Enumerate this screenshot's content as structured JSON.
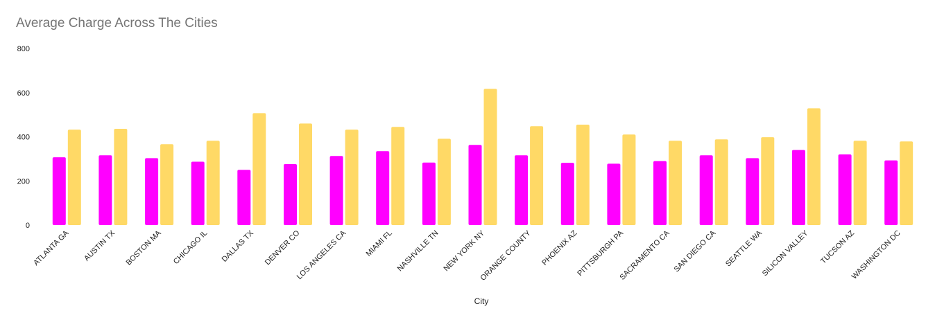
{
  "chart_data": {
    "type": "bar",
    "title": "Average Charge Across The Cities",
    "xlabel": "City",
    "ylabel": "",
    "ylim": [
      0,
      800
    ],
    "yticks": [
      0,
      200,
      400,
      600,
      800
    ],
    "grid": false,
    "legend": "none",
    "categories": [
      "ATLANTA GA",
      "AUSTIN TX",
      "BOSTON MA",
      "CHICAGO IL",
      "DALLAS TX",
      "DENVER CO",
      "LOS ANGELES CA",
      "MIAMI FL",
      "NASHVILLE TN",
      "NEW YORK NY",
      "ORANGE COUNTY",
      "PHOENIX AZ",
      "PITTSBURGH PA",
      "SACRAMENTO CA",
      "SAN DIEGO CA",
      "SEATTLE WA",
      "SILICON VALLEY",
      "TUCSON AZ",
      "WASHINGTON DC"
    ],
    "series": [
      {
        "color": "#ff00ff",
        "values": [
          307,
          316,
          303,
          287,
          250,
          276,
          313,
          335,
          283,
          363,
          316,
          282,
          278,
          290,
          316,
          303,
          340,
          320,
          293
        ]
      },
      {
        "color": "#ffd966",
        "values": [
          432,
          436,
          366,
          382,
          507,
          460,
          432,
          445,
          391,
          617,
          448,
          455,
          410,
          382,
          388,
          398,
          529,
          382,
          379
        ]
      }
    ]
  }
}
